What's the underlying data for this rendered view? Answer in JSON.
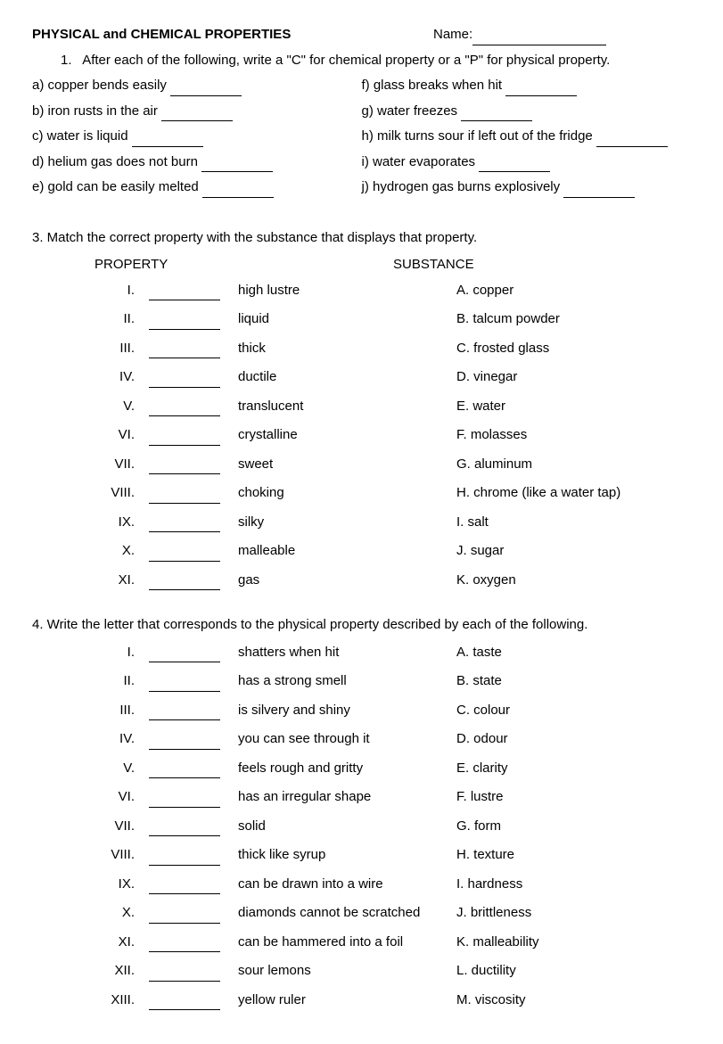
{
  "header": {
    "title": "PHYSICAL and CHEMICAL PROPERTIES",
    "name_label": "Name:"
  },
  "q1": {
    "number": "1.",
    "intro": "After each of the following, write a \"C\" for chemical property or a \"P\" for physical property.",
    "left": [
      {
        "label": "a) copper bends easily"
      },
      {
        "label": "b) iron rusts in the air"
      },
      {
        "label": "c) water is liquid"
      },
      {
        "label": "d) helium gas does not burn"
      },
      {
        "label": "e) gold can be easily melted"
      }
    ],
    "right": [
      {
        "label": "f) glass breaks when hit"
      },
      {
        "label": "g) water freezes"
      },
      {
        "label": "h) milk turns sour if left out of the fridge"
      },
      {
        "label": "i) water evaporates"
      },
      {
        "label": "j) hydrogen gas burns explosively"
      }
    ]
  },
  "q3": {
    "intro": "3. Match the correct property with the substance that displays that property.",
    "prop_header": "PROPERTY",
    "sub_header": "SUBSTANCE",
    "rows": [
      {
        "roman": "I.",
        "desc": "high lustre",
        "ans": "A. copper"
      },
      {
        "roman": "II.",
        "desc": "liquid",
        "ans": "B. talcum powder"
      },
      {
        "roman": "III.",
        "desc": "thick",
        "ans": "C. frosted glass"
      },
      {
        "roman": "IV.",
        "desc": "ductile",
        "ans": "D. vinegar"
      },
      {
        "roman": "V.",
        "desc": "translucent",
        "ans": "E. water"
      },
      {
        "roman": "VI.",
        "desc": "crystalline",
        "ans": "F. molasses"
      },
      {
        "roman": "VII.",
        "desc": "sweet",
        "ans": "G. aluminum"
      },
      {
        "roman": "VIII.",
        "desc": "choking",
        "ans": "H. chrome (like a water tap)"
      },
      {
        "roman": "IX.",
        "desc": "silky",
        "ans": "I. salt"
      },
      {
        "roman": "X.",
        "desc": "malleable",
        "ans": "J. sugar"
      },
      {
        "roman": "XI.",
        "desc": "gas",
        "ans": "K. oxygen"
      }
    ]
  },
  "q4": {
    "intro": "4. Write the letter that corresponds to the physical property described by each of the following.",
    "rows": [
      {
        "roman": "I.",
        "desc": "shatters when hit",
        "ans": "A. taste"
      },
      {
        "roman": "II.",
        "desc": "has a strong smell",
        "ans": "B. state"
      },
      {
        "roman": "III.",
        "desc": "is silvery and shiny",
        "ans": "C. colour"
      },
      {
        "roman": "IV.",
        "desc": "you can see through it",
        "ans": "D. odour"
      },
      {
        "roman": "V.",
        "desc": "feels rough and gritty",
        "ans": "E. clarity"
      },
      {
        "roman": "VI.",
        "desc": "has an irregular shape",
        "ans": "F. lustre"
      },
      {
        "roman": "VII.",
        "desc": "solid",
        "ans": "G. form"
      },
      {
        "roman": "VIII.",
        "desc": "thick like syrup",
        "ans": "H. texture"
      },
      {
        "roman": "IX.",
        "desc": "can be drawn into a wire",
        "ans": "I. hardness"
      },
      {
        "roman": "X.",
        "desc": "diamonds cannot be scratched",
        "ans": "J. brittleness"
      },
      {
        "roman": "XI.",
        "desc": "can be hammered into a foil",
        "ans": "K. malleability"
      },
      {
        "roman": "XII.",
        "desc": "sour lemons",
        "ans": "L. ductility"
      },
      {
        "roman": "XIII.",
        "desc": "yellow ruler",
        "ans": "M. viscosity"
      }
    ]
  }
}
